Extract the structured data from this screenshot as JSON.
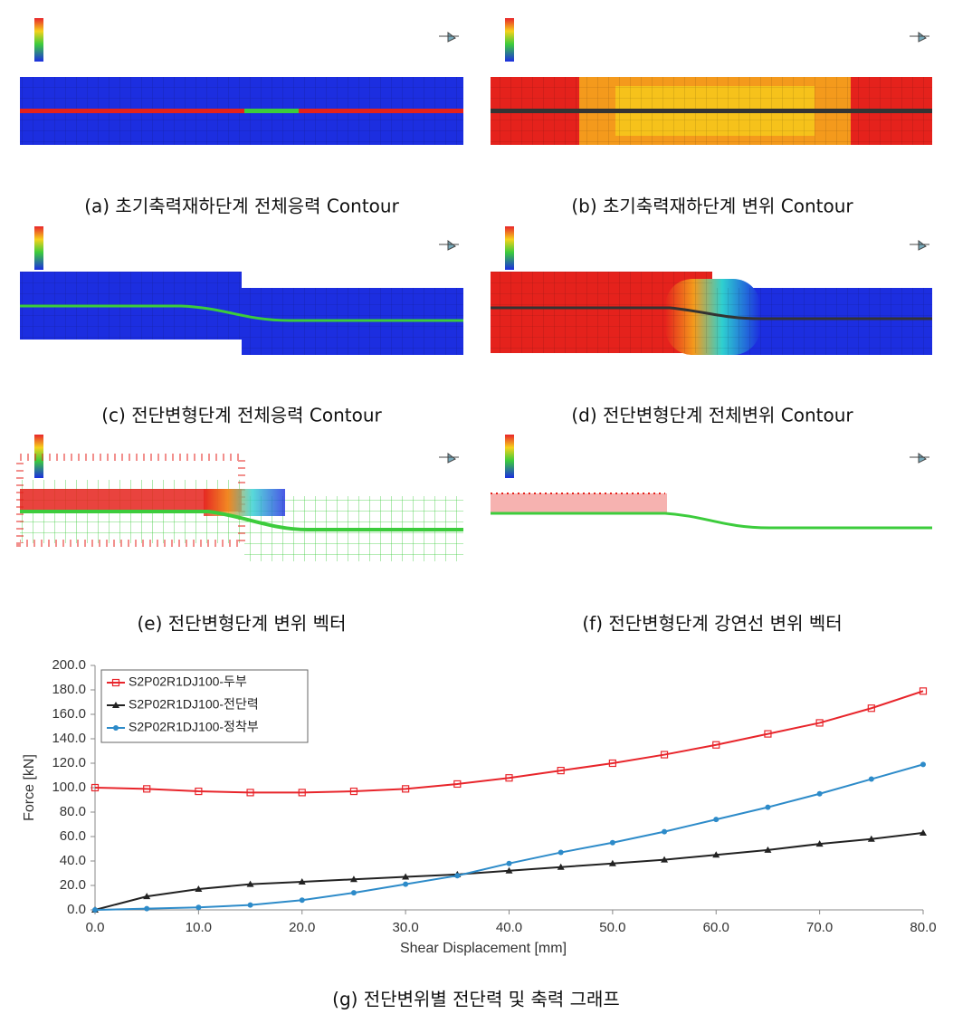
{
  "captions": [
    "(a) 초기축력재하단계 전체응력 Contour",
    "(b) 초기축력재하단계 변위 Contour",
    "(c) 전단변형단계 전체응력 Contour",
    "(d) 전단변형단계 전체변위 Contour",
    "(e) 전단변형단계 변위 벡터",
    "(f) 전단변형단계 강연선 변위 벡터",
    "(g) 전단변위별 전단력 및 축력 그래프"
  ],
  "chart_data": {
    "type": "line",
    "x_label": "Shear Displacement [mm]",
    "y_label": "Force [kN]",
    "x": [
      0,
      5,
      10,
      15,
      20,
      25,
      30,
      35,
      40,
      45,
      50,
      55,
      60,
      65,
      70,
      75,
      80
    ],
    "series": [
      {
        "name": "S2P02R1DJ100-두부",
        "color": "#e8252b",
        "marker": "square",
        "values": [
          100,
          99,
          97,
          96,
          96,
          97,
          99,
          103,
          108,
          114,
          120,
          127,
          135,
          144,
          153,
          165,
          179
        ]
      },
      {
        "name": "S2P02R1DJ100-전단력",
        "color": "#222222",
        "marker": "triangle",
        "values": [
          0,
          11,
          17,
          21,
          23,
          25,
          27,
          29,
          32,
          35,
          38,
          41,
          45,
          49,
          54,
          58,
          63
        ]
      },
      {
        "name": "S2P02R1DJ100-정착부",
        "color": "#2d8bc9",
        "marker": "circle",
        "values": [
          0,
          1,
          2,
          4,
          8,
          14,
          21,
          28,
          38,
          47,
          55,
          64,
          74,
          84,
          95,
          107,
          119
        ]
      }
    ],
    "xlim": [
      0,
      80
    ],
    "xticks": [
      {
        "value": 0,
        "label": "0.0"
      },
      {
        "value": 10,
        "label": "10.0"
      },
      {
        "value": 20,
        "label": "20.0"
      },
      {
        "value": 30,
        "label": "30.0"
      },
      {
        "value": 40,
        "label": "40.0"
      },
      {
        "value": 50,
        "label": "50.0"
      },
      {
        "value": 60,
        "label": "60.0"
      },
      {
        "value": 70,
        "label": "70.0"
      },
      {
        "value": 80,
        "label": "80.0"
      }
    ],
    "ylim": [
      0,
      200
    ],
    "yticks": [
      {
        "value": 0,
        "label": "0.0"
      },
      {
        "value": 20,
        "label": "20.0"
      },
      {
        "value": 40,
        "label": "40.0"
      },
      {
        "value": 60,
        "label": "60.0"
      },
      {
        "value": 80,
        "label": "80.0"
      },
      {
        "value": 100,
        "label": "100.0"
      },
      {
        "value": 120,
        "label": "120.0"
      },
      {
        "value": 140,
        "label": "140.0"
      },
      {
        "value": 160,
        "label": "160.0"
      },
      {
        "value": 180,
        "label": "180.0"
      },
      {
        "value": 200,
        "label": "200.0"
      }
    ],
    "grid": false,
    "legend": "upper left"
  }
}
